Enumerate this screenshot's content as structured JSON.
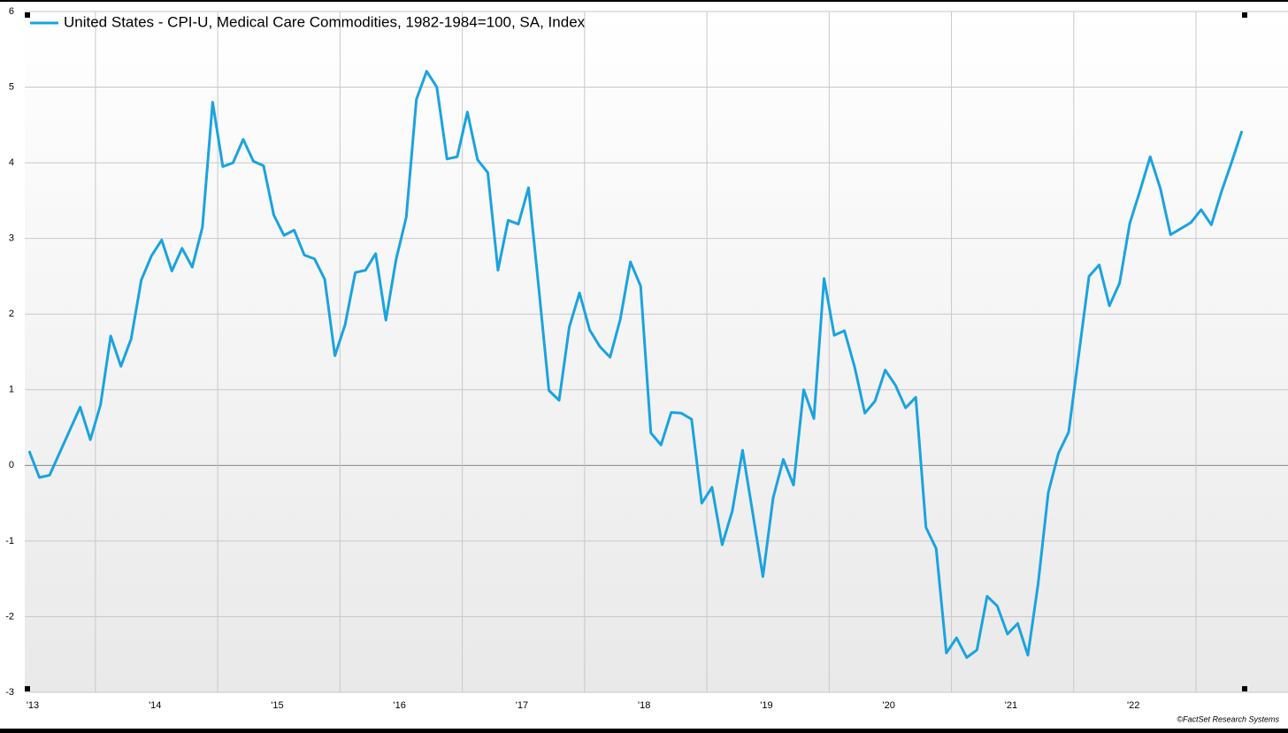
{
  "chart_data": {
    "type": "line",
    "series": [
      {
        "name": "United States - CPI-U, Medical Care Commodities, 1982-1984=100, SA, Index",
        "color": "#1aa3e0",
        "values": [
          0.19,
          -0.16,
          -0.13,
          0.17,
          0.47,
          0.77,
          0.34,
          0.8,
          1.71,
          1.31,
          1.67,
          2.45,
          2.77,
          2.98,
          2.57,
          2.87,
          2.62,
          3.15,
          4.8,
          3.95,
          4.0,
          4.31,
          4.02,
          3.96,
          3.31,
          3.04,
          3.11,
          2.78,
          2.73,
          2.46,
          1.45,
          1.86,
          2.55,
          2.58,
          2.8,
          1.92,
          2.72,
          3.28,
          4.84,
          5.21,
          5.0,
          4.05,
          4.08,
          4.67,
          4.04,
          3.87,
          2.58,
          3.24,
          3.19,
          3.67,
          2.35,
          0.99,
          0.86,
          1.83,
          2.28,
          1.79,
          1.57,
          1.43,
          1.93,
          2.69,
          2.37,
          0.43,
          0.27,
          0.7,
          0.69,
          0.61,
          -0.5,
          -0.29,
          -1.05,
          -0.6,
          0.2,
          -0.63,
          -1.47,
          -0.43,
          0.08,
          -0.26,
          1.0,
          0.62,
          2.47,
          1.72,
          1.78,
          1.3,
          0.69,
          0.85,
          1.26,
          1.06,
          0.76,
          0.9,
          -0.82,
          -1.1,
          -2.48,
          -2.28,
          -2.54,
          -2.44,
          -1.73,
          -1.86,
          -2.23,
          -2.09,
          -2.51,
          -1.57,
          -0.36,
          0.16,
          0.44,
          1.47,
          2.5,
          2.65,
          2.11,
          2.41,
          3.2,
          3.63,
          4.08,
          3.66,
          3.05,
          3.13,
          3.21,
          3.38,
          3.18,
          3.62,
          4.01,
          4.42
        ]
      }
    ],
    "categories": [
      "'13",
      null,
      null,
      null,
      null,
      null,
      null,
      null,
      null,
      null,
      null,
      null,
      "'14",
      null,
      null,
      null,
      null,
      null,
      null,
      null,
      null,
      null,
      null,
      null,
      "'15",
      null,
      null,
      null,
      null,
      null,
      null,
      null,
      null,
      null,
      null,
      null,
      "'16",
      null,
      null,
      null,
      null,
      null,
      null,
      null,
      null,
      null,
      null,
      null,
      "'17",
      null,
      null,
      null,
      null,
      null,
      null,
      null,
      null,
      null,
      null,
      null,
      "'18",
      null,
      null,
      null,
      null,
      null,
      null,
      null,
      null,
      null,
      null,
      null,
      "'19",
      null,
      null,
      null,
      null,
      null,
      null,
      null,
      null,
      null,
      null,
      null,
      "'20",
      null,
      null,
      null,
      null,
      null,
      null,
      null,
      null,
      null,
      null,
      null,
      "'21",
      null,
      null,
      null,
      null,
      null,
      null,
      null,
      null,
      null,
      null,
      null,
      "'22",
      null,
      null,
      null,
      null,
      null,
      null,
      null,
      null,
      null,
      null,
      null
    ],
    "ylim": [
      -3,
      6
    ],
    "yticks": [
      -3,
      -2,
      -1,
      0,
      1,
      2,
      3,
      4,
      5,
      6
    ],
    "grid": true,
    "legend": "top-left",
    "credit": "©FactSet Research Systems"
  }
}
